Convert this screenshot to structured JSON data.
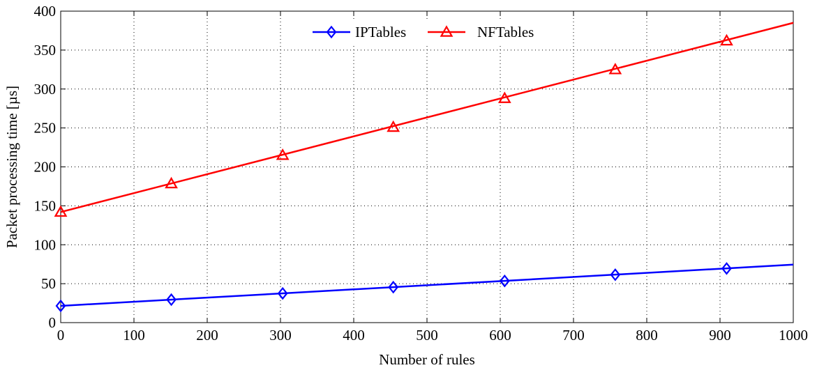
{
  "chart_data": {
    "type": "line",
    "xlabel": "Number of rules",
    "ylabel": "Packet processing time [µs]",
    "xlim": [
      0,
      1000
    ],
    "ylim": [
      0,
      400
    ],
    "xticks": [
      0,
      100,
      200,
      300,
      400,
      500,
      600,
      700,
      800,
      900,
      1000
    ],
    "yticks": [
      0,
      50,
      100,
      150,
      200,
      250,
      300,
      350,
      400
    ],
    "xtick_labels": [
      "0",
      "100",
      "200",
      "300",
      "400",
      "500",
      "600",
      "700",
      "800",
      "900",
      "1000"
    ],
    "ytick_labels": [
      "0",
      "50",
      "100",
      "150",
      "200",
      "250",
      "300",
      "350",
      "400"
    ],
    "grid": true,
    "legend_position": "top-center",
    "series": [
      {
        "name": "IPTables",
        "color": "#0000ff",
        "marker": "diamond",
        "line": [
          [
            0,
            21.5
          ],
          [
            1000,
            74.5
          ]
        ],
        "markers": [
          [
            0,
            21.5
          ],
          [
            151,
            29.5
          ],
          [
            303,
            37.5
          ],
          [
            454,
            45.5
          ],
          [
            606,
            53.5
          ],
          [
            757,
            61.5
          ],
          [
            909,
            69.5
          ]
        ]
      },
      {
        "name": "NFTables",
        "color": "#ff0000",
        "marker": "triangle",
        "line": [
          [
            0,
            142
          ],
          [
            1000,
            385
          ]
        ],
        "markers": [
          [
            0,
            142
          ],
          [
            151,
            178.5
          ],
          [
            303,
            215
          ],
          [
            454,
            251
          ],
          [
            606,
            288
          ],
          [
            757,
            325
          ],
          [
            909,
            362
          ]
        ]
      }
    ]
  }
}
